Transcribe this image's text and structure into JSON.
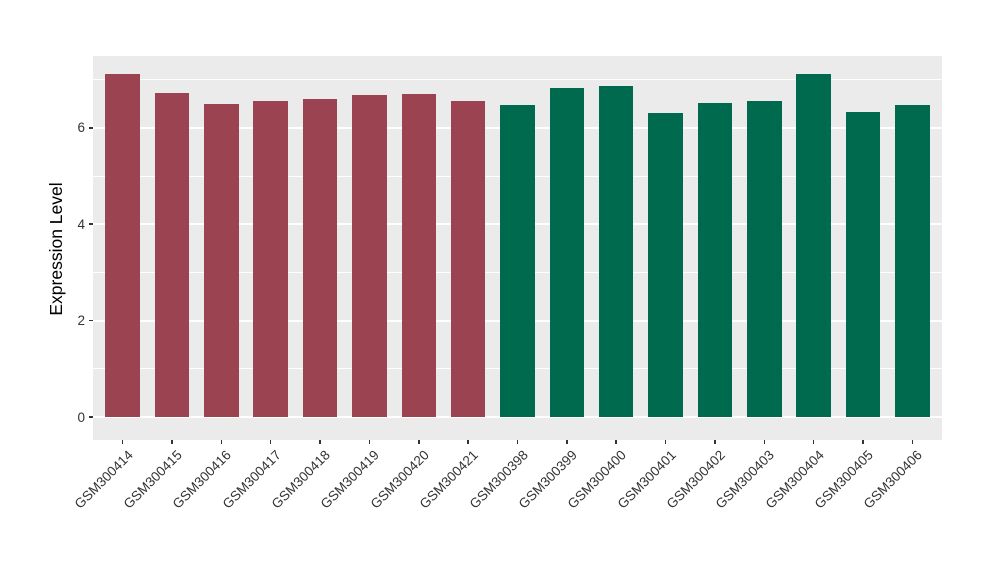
{
  "chart_data": {
    "type": "bar",
    "title": "",
    "xlabel": "",
    "ylabel": "Expression Level",
    "categories": [
      "GSM300414",
      "GSM300415",
      "GSM300416",
      "GSM300417",
      "GSM300418",
      "GSM300419",
      "GSM300420",
      "GSM300421",
      "GSM300398",
      "GSM300399",
      "GSM300400",
      "GSM300401",
      "GSM300402",
      "GSM300403",
      "GSM300404",
      "GSM300405",
      "GSM300406"
    ],
    "values": [
      7.12,
      6.73,
      6.5,
      6.56,
      6.6,
      6.69,
      6.7,
      6.56,
      6.47,
      6.82,
      6.87,
      6.3,
      6.51,
      6.56,
      7.12,
      6.32,
      6.47
    ],
    "groups": [
      "A",
      "A",
      "A",
      "A",
      "A",
      "A",
      "A",
      "A",
      "B",
      "B",
      "B",
      "B",
      "B",
      "B",
      "B",
      "B",
      "B"
    ],
    "group_colors": {
      "A": "#9C4352",
      "B": "#006A4E"
    },
    "y_ticks_major": [
      0,
      2,
      4,
      6
    ],
    "y_ticks_minor": [
      1,
      3,
      5,
      7
    ],
    "ylim": [
      -0.46,
      7.5
    ],
    "legend_position": "none",
    "grid": true,
    "x_label_angle": -45,
    "bar_width_fraction": 0.7,
    "colors": {
      "panel_background": "#EBEBEB",
      "gridline": "#FFFFFF",
      "axis_text": "#333333",
      "axis_title": "#000000",
      "tick_mark": "#333333",
      "figure_background": "#FFFFFF"
    }
  }
}
